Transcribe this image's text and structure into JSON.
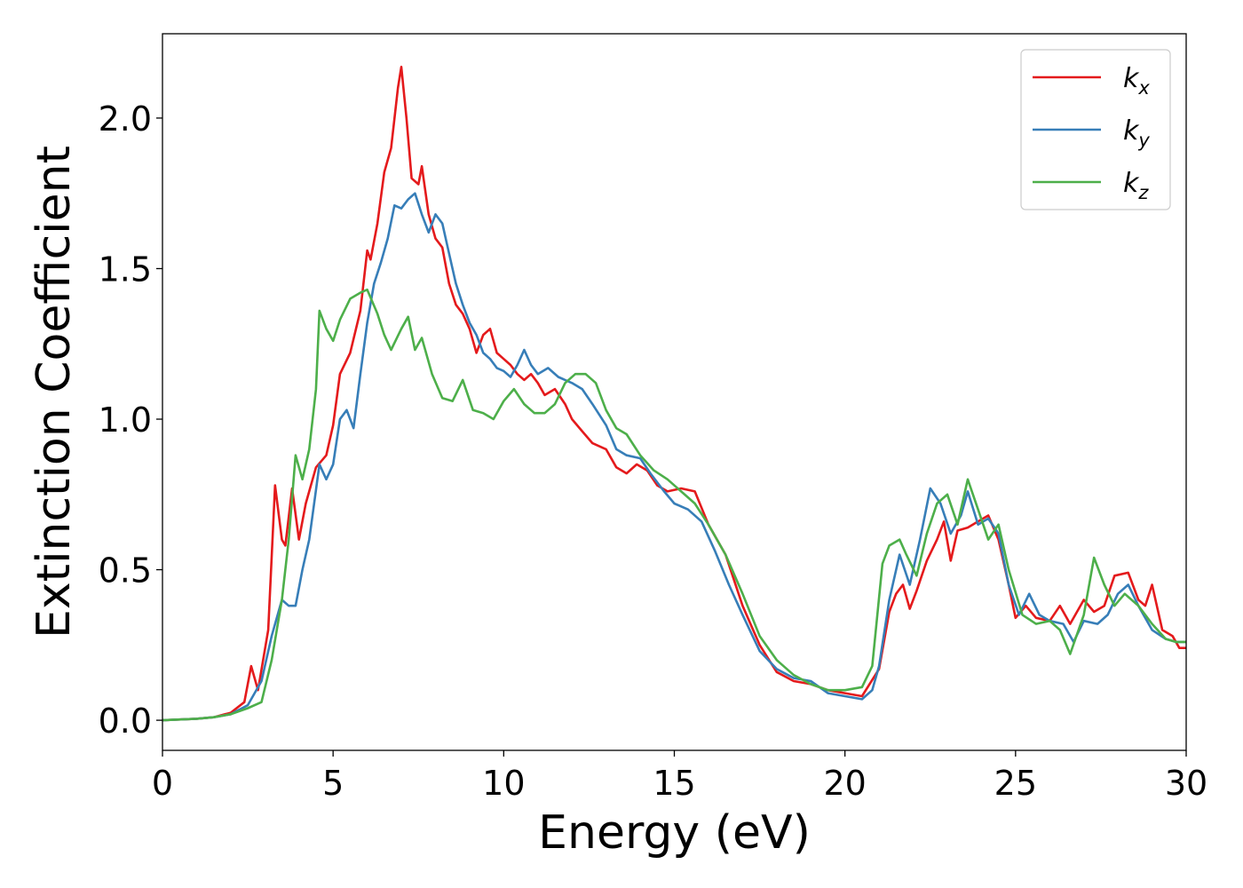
{
  "chart_data": {
    "type": "line",
    "xlabel": "Energy (eV)",
    "ylabel": "Extinction Coefficient",
    "xlim": [
      0,
      30
    ],
    "ylim": [
      -0.1,
      2.28
    ],
    "xticks": [
      0,
      5,
      10,
      15,
      20,
      25,
      30
    ],
    "yticks": [
      0.0,
      0.5,
      1.0,
      1.5,
      2.0
    ],
    "xtick_labels": [
      "0",
      "5",
      "10",
      "15",
      "20",
      "25",
      "30"
    ],
    "ytick_labels": [
      "0.0",
      "0.5",
      "1.0",
      "1.5",
      "2.0"
    ],
    "grid": false,
    "legend_position": "top-right",
    "series": [
      {
        "name": "k",
        "subscript": "x",
        "color": "#e41a1c",
        "points": [
          [
            0,
            0
          ],
          [
            1,
            0.005
          ],
          [
            1.5,
            0.01
          ],
          [
            2,
            0.025
          ],
          [
            2.4,
            0.06
          ],
          [
            2.6,
            0.18
          ],
          [
            2.8,
            0.1
          ],
          [
            3.1,
            0.3
          ],
          [
            3.3,
            0.78
          ],
          [
            3.5,
            0.6
          ],
          [
            3.6,
            0.58
          ],
          [
            3.8,
            0.77
          ],
          [
            4,
            0.6
          ],
          [
            4.2,
            0.72
          ],
          [
            4.5,
            0.84
          ],
          [
            4.8,
            0.88
          ],
          [
            5,
            0.98
          ],
          [
            5.2,
            1.15
          ],
          [
            5.5,
            1.22
          ],
          [
            5.8,
            1.36
          ],
          [
            6,
            1.56
          ],
          [
            6.1,
            1.53
          ],
          [
            6.3,
            1.65
          ],
          [
            6.5,
            1.82
          ],
          [
            6.7,
            1.9
          ],
          [
            6.9,
            2.1
          ],
          [
            7,
            2.17
          ],
          [
            7.15,
            2.0
          ],
          [
            7.3,
            1.8
          ],
          [
            7.5,
            1.78
          ],
          [
            7.6,
            1.84
          ],
          [
            7.8,
            1.68
          ],
          [
            8,
            1.6
          ],
          [
            8.2,
            1.57
          ],
          [
            8.4,
            1.45
          ],
          [
            8.6,
            1.38
          ],
          [
            8.8,
            1.35
          ],
          [
            9,
            1.3
          ],
          [
            9.2,
            1.22
          ],
          [
            9.4,
            1.28
          ],
          [
            9.6,
            1.3
          ],
          [
            9.8,
            1.22
          ],
          [
            10,
            1.2
          ],
          [
            10.2,
            1.18
          ],
          [
            10.4,
            1.15
          ],
          [
            10.6,
            1.13
          ],
          [
            10.8,
            1.15
          ],
          [
            11,
            1.12
          ],
          [
            11.2,
            1.08
          ],
          [
            11.5,
            1.1
          ],
          [
            11.8,
            1.05
          ],
          [
            12,
            1.0
          ],
          [
            12.3,
            0.96
          ],
          [
            12.6,
            0.92
          ],
          [
            13,
            0.9
          ],
          [
            13.3,
            0.84
          ],
          [
            13.6,
            0.82
          ],
          [
            13.9,
            0.85
          ],
          [
            14.2,
            0.83
          ],
          [
            14.5,
            0.78
          ],
          [
            14.8,
            0.76
          ],
          [
            15.2,
            0.77
          ],
          [
            15.6,
            0.76
          ],
          [
            16,
            0.65
          ],
          [
            16.5,
            0.55
          ],
          [
            17,
            0.38
          ],
          [
            17.5,
            0.25
          ],
          [
            18,
            0.16
          ],
          [
            18.5,
            0.13
          ],
          [
            19,
            0.12
          ],
          [
            19.5,
            0.1
          ],
          [
            20,
            0.09
          ],
          [
            20.5,
            0.08
          ],
          [
            21,
            0.17
          ],
          [
            21.3,
            0.36
          ],
          [
            21.5,
            0.42
          ],
          [
            21.7,
            0.45
          ],
          [
            21.9,
            0.37
          ],
          [
            22.1,
            0.43
          ],
          [
            22.4,
            0.53
          ],
          [
            22.7,
            0.6
          ],
          [
            22.9,
            0.66
          ],
          [
            23.1,
            0.53
          ],
          [
            23.3,
            0.63
          ],
          [
            23.6,
            0.64
          ],
          [
            23.9,
            0.66
          ],
          [
            24.2,
            0.68
          ],
          [
            24.5,
            0.6
          ],
          [
            24.8,
            0.45
          ],
          [
            25,
            0.34
          ],
          [
            25.3,
            0.38
          ],
          [
            25.6,
            0.34
          ],
          [
            26,
            0.33
          ],
          [
            26.3,
            0.38
          ],
          [
            26.6,
            0.32
          ],
          [
            27,
            0.4
          ],
          [
            27.3,
            0.36
          ],
          [
            27.6,
            0.38
          ],
          [
            27.9,
            0.48
          ],
          [
            28.3,
            0.49
          ],
          [
            28.6,
            0.4
          ],
          [
            28.8,
            0.38
          ],
          [
            29,
            0.45
          ],
          [
            29.3,
            0.3
          ],
          [
            29.6,
            0.28
          ],
          [
            29.8,
            0.24
          ],
          [
            30,
            0.24
          ]
        ]
      },
      {
        "name": "k",
        "subscript": "y",
        "color": "#377eb8",
        "points": [
          [
            0,
            0
          ],
          [
            1,
            0.005
          ],
          [
            1.5,
            0.01
          ],
          [
            2,
            0.02
          ],
          [
            2.5,
            0.05
          ],
          [
            2.9,
            0.13
          ],
          [
            3.2,
            0.28
          ],
          [
            3.5,
            0.4
          ],
          [
            3.7,
            0.38
          ],
          [
            3.9,
            0.38
          ],
          [
            4.1,
            0.5
          ],
          [
            4.3,
            0.6
          ],
          [
            4.6,
            0.85
          ],
          [
            4.8,
            0.8
          ],
          [
            5,
            0.85
          ],
          [
            5.2,
            1.0
          ],
          [
            5.4,
            1.03
          ],
          [
            5.6,
            0.97
          ],
          [
            5.8,
            1.15
          ],
          [
            6,
            1.32
          ],
          [
            6.2,
            1.45
          ],
          [
            6.4,
            1.52
          ],
          [
            6.6,
            1.6
          ],
          [
            6.8,
            1.71
          ],
          [
            7,
            1.7
          ],
          [
            7.2,
            1.73
          ],
          [
            7.4,
            1.75
          ],
          [
            7.6,
            1.68
          ],
          [
            7.8,
            1.62
          ],
          [
            8,
            1.68
          ],
          [
            8.2,
            1.65
          ],
          [
            8.4,
            1.55
          ],
          [
            8.6,
            1.45
          ],
          [
            8.8,
            1.38
          ],
          [
            9,
            1.32
          ],
          [
            9.2,
            1.28
          ],
          [
            9.4,
            1.22
          ],
          [
            9.6,
            1.2
          ],
          [
            9.8,
            1.17
          ],
          [
            10,
            1.16
          ],
          [
            10.2,
            1.14
          ],
          [
            10.4,
            1.18
          ],
          [
            10.6,
            1.23
          ],
          [
            10.8,
            1.18
          ],
          [
            11,
            1.15
          ],
          [
            11.3,
            1.17
          ],
          [
            11.6,
            1.14
          ],
          [
            12,
            1.12
          ],
          [
            12.3,
            1.1
          ],
          [
            12.6,
            1.05
          ],
          [
            13,
            0.98
          ],
          [
            13.3,
            0.9
          ],
          [
            13.6,
            0.88
          ],
          [
            14,
            0.87
          ],
          [
            14.3,
            0.82
          ],
          [
            14.7,
            0.76
          ],
          [
            15,
            0.72
          ],
          [
            15.4,
            0.7
          ],
          [
            15.8,
            0.66
          ],
          [
            16.2,
            0.56
          ],
          [
            16.6,
            0.45
          ],
          [
            17,
            0.35
          ],
          [
            17.5,
            0.23
          ],
          [
            18,
            0.17
          ],
          [
            18.5,
            0.14
          ],
          [
            19,
            0.13
          ],
          [
            19.5,
            0.09
          ],
          [
            20,
            0.08
          ],
          [
            20.5,
            0.07
          ],
          [
            20.8,
            0.1
          ],
          [
            21,
            0.18
          ],
          [
            21.3,
            0.4
          ],
          [
            21.6,
            0.55
          ],
          [
            21.9,
            0.45
          ],
          [
            22.2,
            0.6
          ],
          [
            22.5,
            0.77
          ],
          [
            22.8,
            0.72
          ],
          [
            23.1,
            0.62
          ],
          [
            23.4,
            0.68
          ],
          [
            23.6,
            0.76
          ],
          [
            23.9,
            0.65
          ],
          [
            24.2,
            0.67
          ],
          [
            24.5,
            0.62
          ],
          [
            24.8,
            0.45
          ],
          [
            25.1,
            0.35
          ],
          [
            25.4,
            0.42
          ],
          [
            25.7,
            0.35
          ],
          [
            26,
            0.33
          ],
          [
            26.4,
            0.32
          ],
          [
            26.7,
            0.26
          ],
          [
            27,
            0.33
          ],
          [
            27.4,
            0.32
          ],
          [
            27.7,
            0.35
          ],
          [
            28,
            0.42
          ],
          [
            28.3,
            0.45
          ],
          [
            28.6,
            0.38
          ],
          [
            29,
            0.3
          ],
          [
            29.4,
            0.27
          ],
          [
            29.7,
            0.26
          ],
          [
            30,
            0.26
          ]
        ]
      },
      {
        "name": "k",
        "subscript": "z",
        "color": "#4daf4a",
        "points": [
          [
            0,
            0
          ],
          [
            1,
            0.005
          ],
          [
            1.5,
            0.01
          ],
          [
            2,
            0.02
          ],
          [
            2.5,
            0.04
          ],
          [
            2.9,
            0.06
          ],
          [
            3.2,
            0.2
          ],
          [
            3.5,
            0.4
          ],
          [
            3.7,
            0.6
          ],
          [
            3.9,
            0.88
          ],
          [
            4.1,
            0.8
          ],
          [
            4.3,
            0.9
          ],
          [
            4.5,
            1.1
          ],
          [
            4.6,
            1.36
          ],
          [
            4.8,
            1.3
          ],
          [
            5,
            1.26
          ],
          [
            5.2,
            1.33
          ],
          [
            5.5,
            1.4
          ],
          [
            5.8,
            1.42
          ],
          [
            6,
            1.43
          ],
          [
            6.3,
            1.35
          ],
          [
            6.5,
            1.28
          ],
          [
            6.7,
            1.23
          ],
          [
            7,
            1.3
          ],
          [
            7.2,
            1.34
          ],
          [
            7.4,
            1.23
          ],
          [
            7.6,
            1.27
          ],
          [
            7.9,
            1.15
          ],
          [
            8.2,
            1.07
          ],
          [
            8.5,
            1.06
          ],
          [
            8.8,
            1.13
          ],
          [
            9.1,
            1.03
          ],
          [
            9.4,
            1.02
          ],
          [
            9.7,
            1.0
          ],
          [
            10,
            1.06
          ],
          [
            10.3,
            1.1
          ],
          [
            10.6,
            1.05
          ],
          [
            10.9,
            1.02
          ],
          [
            11.2,
            1.02
          ],
          [
            11.5,
            1.05
          ],
          [
            11.8,
            1.12
          ],
          [
            12.1,
            1.15
          ],
          [
            12.4,
            1.15
          ],
          [
            12.7,
            1.12
          ],
          [
            13,
            1.03
          ],
          [
            13.3,
            0.97
          ],
          [
            13.6,
            0.95
          ],
          [
            14,
            0.88
          ],
          [
            14.4,
            0.83
          ],
          [
            14.8,
            0.8
          ],
          [
            15.2,
            0.76
          ],
          [
            15.6,
            0.72
          ],
          [
            16,
            0.65
          ],
          [
            16.5,
            0.55
          ],
          [
            17,
            0.42
          ],
          [
            17.5,
            0.28
          ],
          [
            18,
            0.2
          ],
          [
            18.5,
            0.15
          ],
          [
            19,
            0.12
          ],
          [
            19.5,
            0.1
          ],
          [
            20,
            0.1
          ],
          [
            20.5,
            0.11
          ],
          [
            20.8,
            0.18
          ],
          [
            21.1,
            0.52
          ],
          [
            21.3,
            0.58
          ],
          [
            21.6,
            0.6
          ],
          [
            21.8,
            0.55
          ],
          [
            22.1,
            0.48
          ],
          [
            22.4,
            0.62
          ],
          [
            22.7,
            0.72
          ],
          [
            23,
            0.75
          ],
          [
            23.3,
            0.65
          ],
          [
            23.6,
            0.8
          ],
          [
            23.9,
            0.7
          ],
          [
            24.2,
            0.6
          ],
          [
            24.5,
            0.65
          ],
          [
            24.8,
            0.5
          ],
          [
            25.2,
            0.35
          ],
          [
            25.6,
            0.32
          ],
          [
            26,
            0.33
          ],
          [
            26.3,
            0.3
          ],
          [
            26.6,
            0.22
          ],
          [
            27,
            0.35
          ],
          [
            27.3,
            0.54
          ],
          [
            27.6,
            0.45
          ],
          [
            27.9,
            0.38
          ],
          [
            28.2,
            0.42
          ],
          [
            28.6,
            0.38
          ],
          [
            29,
            0.32
          ],
          [
            29.4,
            0.27
          ],
          [
            29.7,
            0.26
          ],
          [
            30,
            0.26
          ]
        ]
      }
    ]
  }
}
